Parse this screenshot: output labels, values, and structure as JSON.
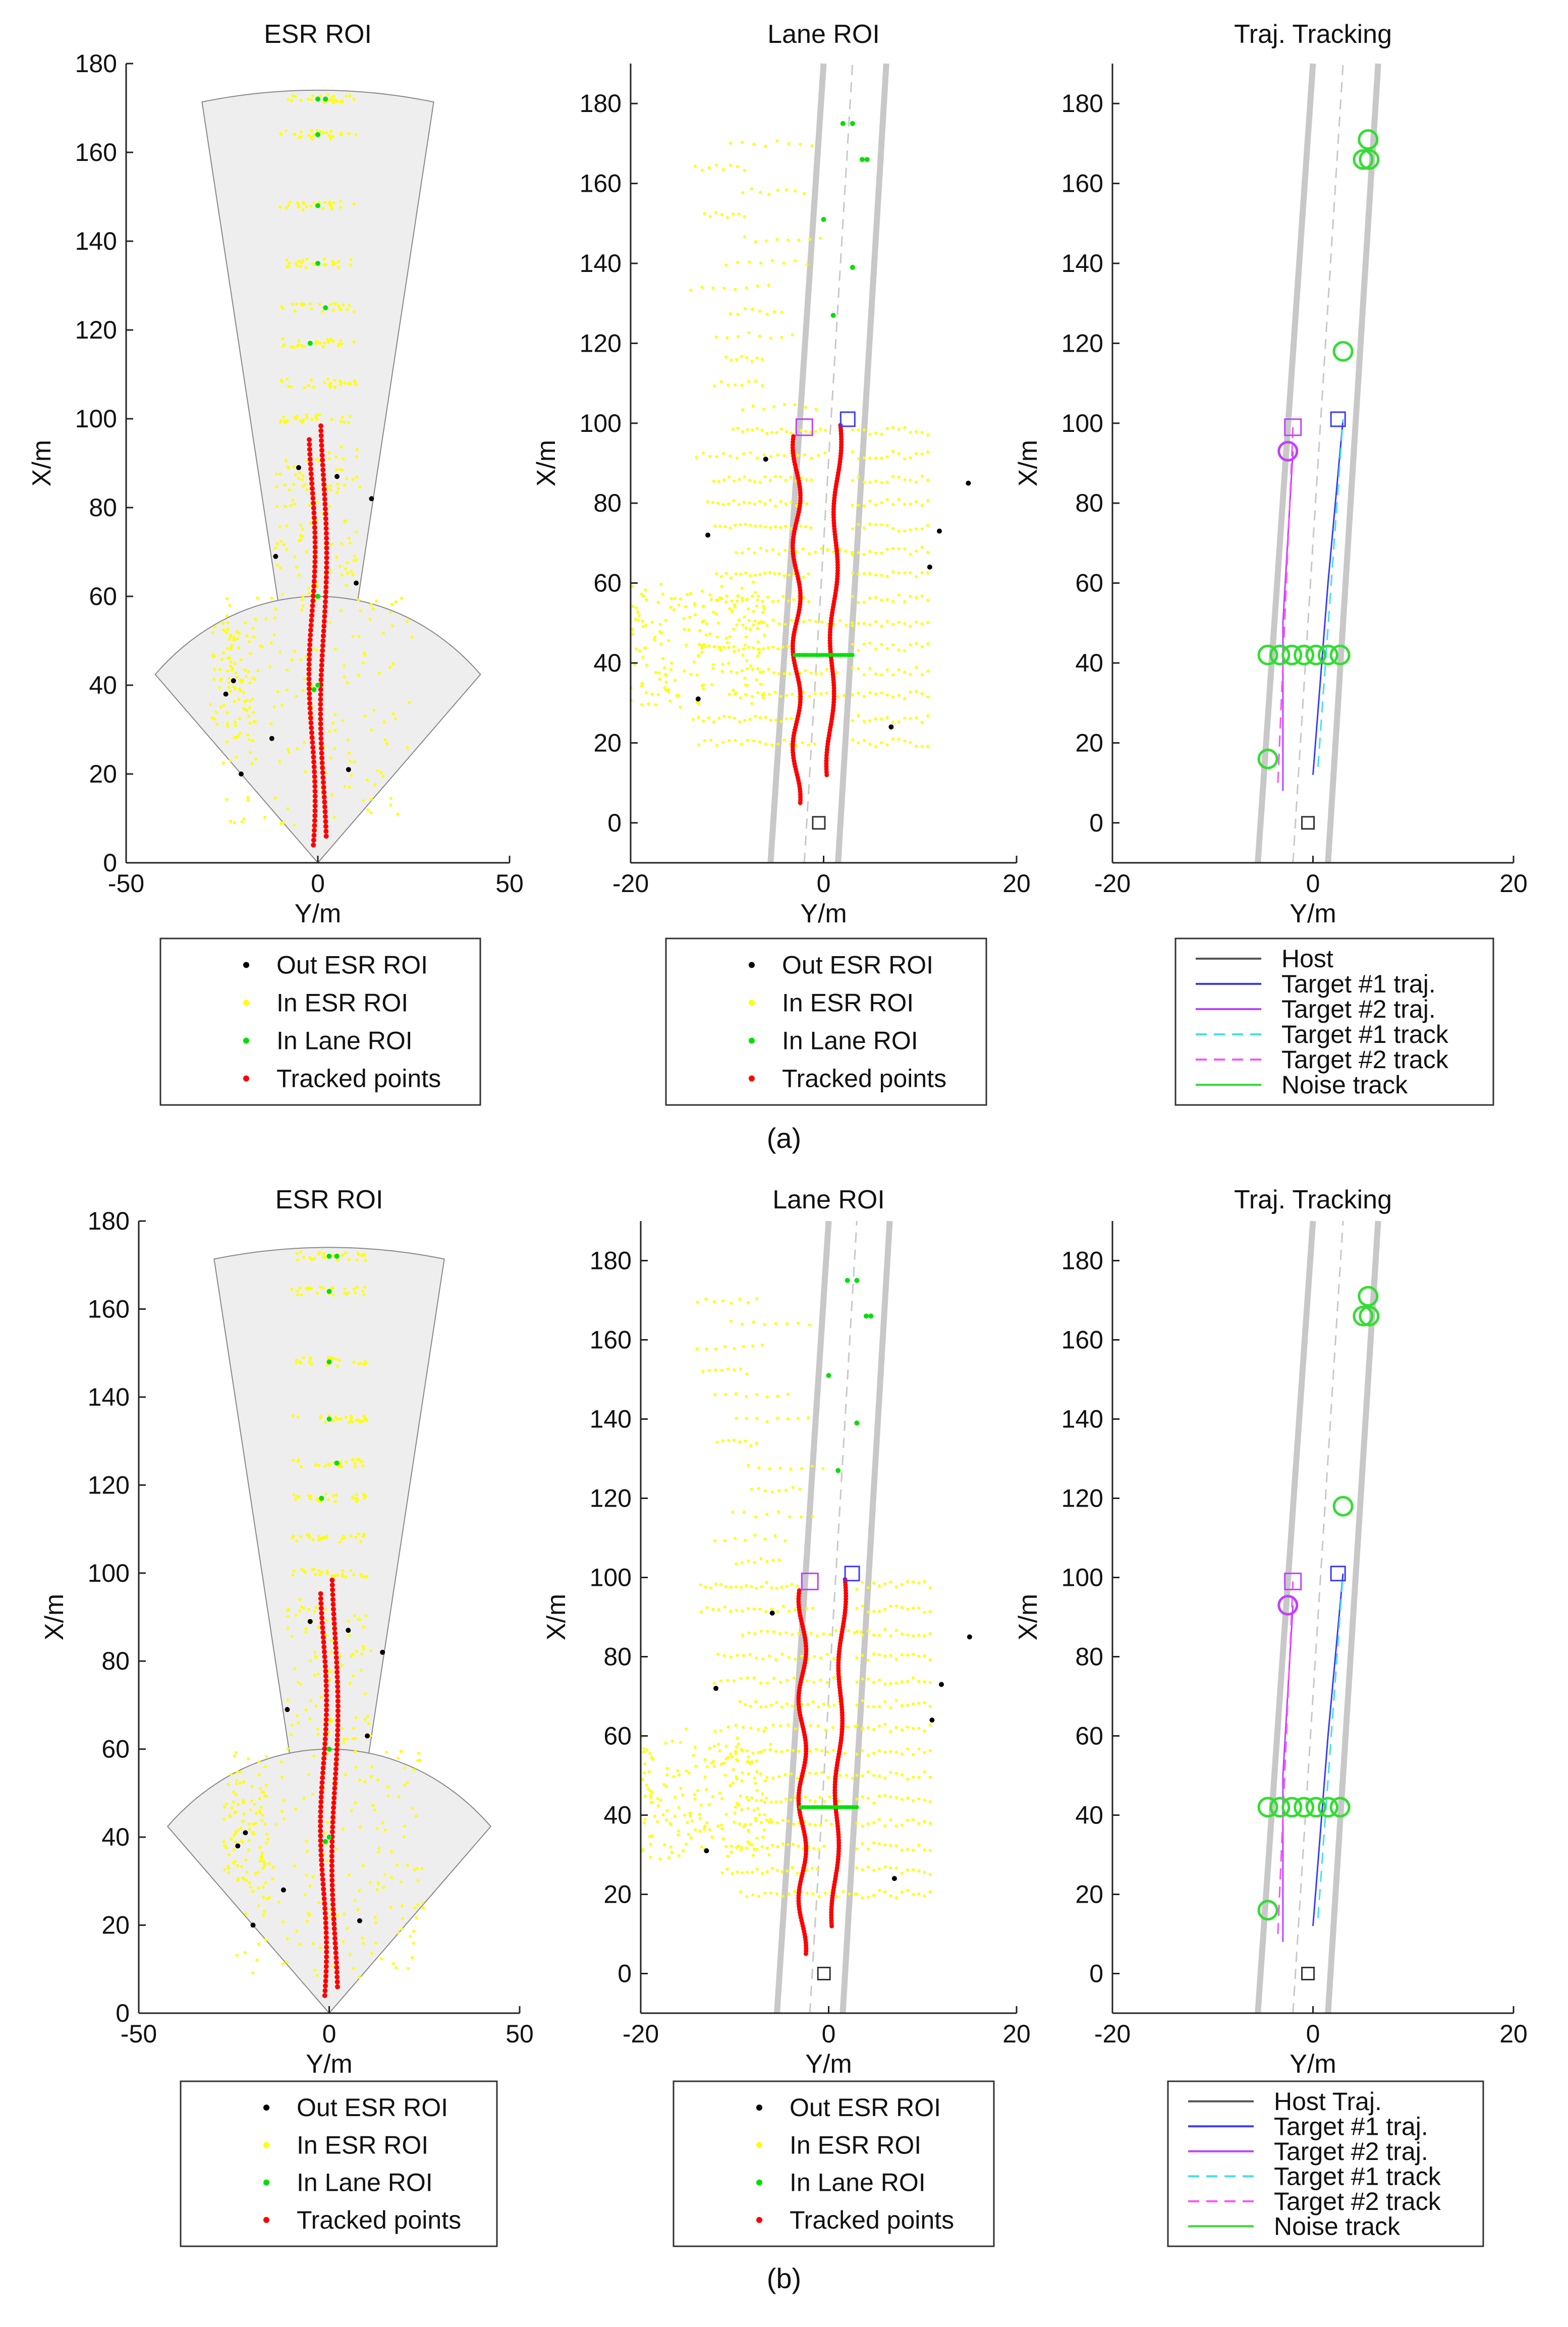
{
  "figure": {
    "panels": [
      {
        "label": "(a)",
        "plots": [
          {
            "title": "ESR ROI",
            "xlabel": "Y/m",
            "ylabel": "X/m",
            "xlim": [
              -50,
              50
            ],
            "ylim": [
              0,
              180
            ],
            "xticks": [
              "-50",
              "0",
              "50"
            ],
            "yticks": [
              "0",
              "20",
              "40",
              "60",
              "80",
              "100",
              "120",
              "140",
              "160",
              "180"
            ],
            "legend": [
              "Out ESR ROI",
              "In ESR ROI",
              "In Lane ROI",
              "Tracked points"
            ]
          },
          {
            "title": "Lane ROI",
            "xlabel": "Y/m",
            "ylabel": "X/m",
            "xlim": [
              -20,
              20
            ],
            "ylim": [
              -10,
              190
            ],
            "xticks": [
              "-20",
              "0",
              "20"
            ],
            "yticks": [
              "0",
              "20",
              "40",
              "60",
              "80",
              "100",
              "120",
              "140",
              "160",
              "180"
            ],
            "legend": [
              "Out ESR ROI",
              "In ESR ROI",
              "In Lane ROI",
              "Tracked points"
            ]
          },
          {
            "title": "Traj. Tracking",
            "xlabel": "Y/m",
            "ylabel": "X/m",
            "xlim": [
              -20,
              20
            ],
            "ylim": [
              -10,
              190
            ],
            "xticks": [
              "-20",
              "0",
              "20"
            ],
            "yticks": [
              "0",
              "20",
              "40",
              "60",
              "80",
              "100",
              "120",
              "140",
              "160",
              "180"
            ],
            "legend": [
              "Host",
              "Target #1 traj.",
              "Target #2 traj.",
              "Target #1 track",
              "Target #2 track",
              "Noise track"
            ]
          }
        ]
      },
      {
        "label": "(b)",
        "plots": [
          {
            "title": "ESR ROI",
            "xlabel": "Y/m",
            "ylabel": "X/m",
            "xlim": [
              -50,
              50
            ],
            "ylim": [
              0,
              180
            ],
            "xticks": [
              "-50",
              "0",
              "50"
            ],
            "yticks": [
              "0",
              "20",
              "40",
              "60",
              "80",
              "100",
              "120",
              "140",
              "160",
              "180"
            ],
            "legend": [
              "Out ESR ROI",
              "In ESR ROI",
              "In Lane ROI",
              "Tracked points"
            ]
          },
          {
            "title": "Lane ROI",
            "xlabel": "Y/m",
            "ylabel": "X/m",
            "xlim": [
              -20,
              20
            ],
            "ylim": [
              -10,
              190
            ],
            "xticks": [
              "-20",
              "0",
              "20"
            ],
            "yticks": [
              "0",
              "20",
              "40",
              "60",
              "80",
              "100",
              "120",
              "140",
              "160",
              "180"
            ],
            "legend": [
              "Out ESR ROI",
              "In ESR ROI",
              "In Lane ROI",
              "Tracked points"
            ]
          },
          {
            "title": "Traj. Tracking",
            "xlabel": "Y/m",
            "ylabel": "X/m",
            "xlim": [
              -20,
              20
            ],
            "ylim": [
              -10,
              190
            ],
            "xticks": [
              "-20",
              "0",
              "20"
            ],
            "yticks": [
              "0",
              "20",
              "40",
              "60",
              "80",
              "100",
              "120",
              "140",
              "160",
              "180"
            ],
            "legend": [
              "Host Traj.",
              "Target #1 traj.",
              "Target #2 traj.",
              "Target #1 track",
              "Target #2 track",
              "Noise track"
            ]
          }
        ]
      }
    ]
  },
  "colors": {
    "out_esr": "#000000",
    "in_esr": "#ffff00",
    "in_lane": "#00e000",
    "tracked": "#ff0000",
    "roi_fill": "#eeeeee",
    "lane_line": "#c8c8c8",
    "host": "#555555",
    "target1": "#3a3aff",
    "target2": "#c040ff",
    "target1_track": "#40e0f0",
    "target2_track": "#ff50ff",
    "noise": "#33dd33"
  },
  "chart_data": [
    {
      "type": "scatter",
      "panel": "(a)",
      "title": "ESR ROI",
      "xlabel": "Y/m",
      "ylabel": "X/m",
      "xlim": [
        -50,
        50
      ],
      "ylim": [
        0,
        180
      ],
      "regions": {
        "near_sector": {
          "range_m": 60,
          "half_angle_deg": 45
        },
        "far_sector": {
          "range_m": 174,
          "half_angle_deg": 10
        }
      },
      "series": [
        {
          "name": "Tracked points",
          "description": "two columns of red points",
          "points": [
            [
              -1.5,
              5
            ],
            [
              -1,
              20
            ],
            [
              -1,
              40
            ],
            [
              -1,
              60
            ],
            [
              -1,
              80
            ],
            [
              -1.5,
              96
            ],
            [
              1,
              6
            ],
            [
              1.5,
              20
            ],
            [
              1.5,
              40
            ],
            [
              2,
              60
            ],
            [
              2,
              80
            ],
            [
              2,
              99
            ]
          ]
        },
        {
          "name": "In Lane ROI",
          "points": [
            [
              0,
              172
            ],
            [
              2,
              172
            ],
            [
              0,
              164
            ],
            [
              0,
              148
            ],
            [
              0,
              135
            ],
            [
              2,
              125
            ],
            [
              -2,
              117
            ],
            [
              0,
              60
            ],
            [
              0,
              40
            ]
          ]
        },
        {
          "name": "Out ESR ROI",
          "points": [
            [
              -5,
              89
            ],
            [
              5,
              87
            ],
            [
              14,
              82
            ],
            [
              -11,
              69
            ],
            [
              10,
              63
            ],
            [
              -22,
              41
            ],
            [
              -24,
              38
            ],
            [
              -12,
              28
            ],
            [
              -20,
              20
            ]
          ]
        },
        {
          "name": "In ESR ROI",
          "description": "yellow point clusters within sector regions"
        }
      ]
    },
    {
      "type": "scatter",
      "panel": "(a)",
      "title": "Lane ROI",
      "xlabel": "Y/m",
      "ylabel": "X/m",
      "xlim": [
        -20,
        20
      ],
      "ylim": [
        -10,
        190
      ],
      "lane_boundaries": [
        [
          -5.5,
          -10,
          0,
          190
        ],
        [
          1.5,
          -10,
          6.5,
          190
        ]
      ],
      "series": [
        {
          "name": "Tracked points",
          "points": [
            [
              -2.5,
              5
            ],
            [
              -3,
              20
            ],
            [
              -3,
              40
            ],
            [
              -3,
              60
            ],
            [
              -2.5,
              97
            ],
            [
              0.3,
              12
            ],
            [
              0.4,
              40
            ],
            [
              0.6,
              60
            ],
            [
              1.6,
              100
            ]
          ]
        },
        {
          "name": "In Lane ROI",
          "points": [
            [
              0,
              42
            ],
            [
              3,
              175
            ],
            [
              4.5,
              166
            ],
            [
              0,
              151
            ],
            [
              3,
              139
            ],
            [
              1,
              127
            ]
          ]
        },
        {
          "name": "Out ESR ROI",
          "points": [
            [
              -6,
              91
            ],
            [
              -12,
              72
            ],
            [
              12,
              73
            ],
            [
              11,
              64
            ],
            [
              -13,
              31
            ],
            [
              15,
              85
            ],
            [
              7,
              24
            ]
          ]
        },
        {
          "name": "In ESR ROI",
          "description": "yellow horizontal streaks"
        }
      ],
      "markers": [
        {
          "label": "host",
          "x": -0.5,
          "y": 0
        },
        {
          "label": "target1",
          "x": 2.5,
          "y": 101
        },
        {
          "label": "target2",
          "x": -2,
          "y": 99
        }
      ]
    },
    {
      "type": "line",
      "panel": "(a)",
      "title": "Traj. Tracking",
      "xlabel": "Y/m",
      "ylabel": "X/m",
      "xlim": [
        -20,
        20
      ],
      "ylim": [
        -10,
        190
      ],
      "series": [
        {
          "name": "Target #1 traj.",
          "points": [
            [
              0,
              12
            ],
            [
              1.5,
              60
            ],
            [
              3,
              101
            ]
          ]
        },
        {
          "name": "Target #2 traj.",
          "points": [
            [
              -3,
              8
            ],
            [
              -3,
              50
            ],
            [
              -2,
              93
            ]
          ]
        },
        {
          "name": "Target #1 track",
          "points": [
            [
              0,
              14
            ],
            [
              3,
              101
            ]
          ]
        },
        {
          "name": "Target #2 track",
          "points": [
            [
              -3,
              10
            ],
            [
              -2,
              99
            ]
          ]
        },
        {
          "name": "Noise track",
          "points": [
            [
              -4.5,
              42
            ],
            [
              3,
              42
            ],
            [
              -4.5,
              16
            ],
            [
              3,
              118
            ],
            [
              5,
              166
            ],
            [
              5.5,
              171
            ]
          ]
        }
      ],
      "markers": [
        {
          "label": "host",
          "x": -0.5,
          "y": 0
        },
        {
          "label": "target1",
          "x": 2.5,
          "y": 101
        },
        {
          "label": "target2",
          "x": -2,
          "y": 99
        }
      ]
    },
    {
      "type": "scatter",
      "panel": "(b)",
      "title": "ESR ROI",
      "xlabel": "Y/m",
      "ylabel": "X/m",
      "xlim": [
        -50,
        50
      ],
      "ylim": [
        0,
        180
      ]
    },
    {
      "type": "scatter",
      "panel": "(b)",
      "title": "Lane ROI",
      "xlabel": "Y/m",
      "ylabel": "X/m",
      "xlim": [
        -20,
        20
      ],
      "ylim": [
        -10,
        190
      ]
    },
    {
      "type": "line",
      "panel": "(b)",
      "title": "Traj. Tracking",
      "xlabel": "Y/m",
      "ylabel": "X/m",
      "xlim": [
        -20,
        20
      ],
      "ylim": [
        -10,
        190
      ]
    }
  ]
}
